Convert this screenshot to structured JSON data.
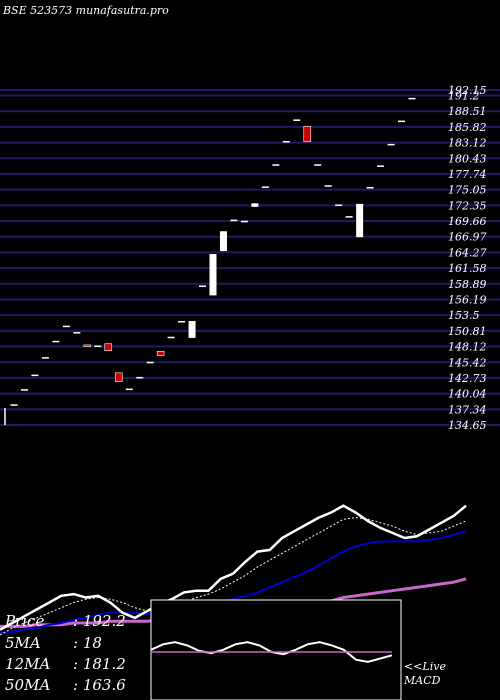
{
  "header": {
    "title": "BSE 523573 munafasutra.pro"
  },
  "chart_data": [
    {
      "type": "candlestick",
      "title": "BSE 523573 munafasutra.pro",
      "ylim": [
        134.65,
        192.15
      ],
      "y_ticks": [
        134.65,
        137.34,
        140.04,
        142.73,
        145.42,
        148.12,
        150.81,
        153.5,
        156.19,
        158.89,
        161.58,
        164.27,
        166.97,
        169.66,
        172.35,
        175.05,
        177.74,
        180.43,
        183.12,
        185.82,
        188.51,
        191.2,
        192.15
      ],
      "y_tick_labels": [
        "134.65",
        "137.34",
        "140.04",
        "142.73",
        "145.42",
        "148.12",
        "150.81",
        "153.5",
        "156.19",
        "158.89",
        "161.58",
        "164.27",
        "166.97",
        "169.66",
        "172.35",
        "175.05",
        "177.74",
        "180.43",
        "183.12",
        "185.82",
        "188.51",
        "191.2",
        "192.15"
      ],
      "colors": {
        "up": "#ffffff",
        "down": "#cc0000",
        "grid": "#1c1c66",
        "background": "#000000"
      },
      "candles": [
        {
          "open": 138.2,
          "close": 138.2,
          "high": 138.2,
          "low": 138.2
        },
        {
          "open": 140.8,
          "close": 140.8,
          "high": 140.8,
          "low": 140.8
        },
        {
          "open": 143.3,
          "close": 143.3,
          "high": 143.3,
          "low": 143.3
        },
        {
          "open": 146.3,
          "close": 146.3,
          "high": 146.3,
          "low": 146.3
        },
        {
          "open": 149.1,
          "close": 149.1,
          "high": 149.1,
          "low": 149.1
        },
        {
          "open": 151.7,
          "close": 151.7,
          "high": 151.7,
          "low": 151.7
        },
        {
          "open": 150.6,
          "close": 150.6,
          "high": 150.6,
          "low": 150.6
        },
        {
          "open": 148.4,
          "close": 148.1,
          "high": 148.4,
          "low": 148.1
        },
        {
          "open": 148.3,
          "close": 148.3,
          "high": 148.3,
          "low": 148.3
        },
        {
          "open": 148.6,
          "close": 147.4,
          "high": 148.6,
          "low": 147.4
        },
        {
          "open": 143.6,
          "close": 142.1,
          "high": 143.6,
          "low": 142.1
        },
        {
          "open": 140.9,
          "close": 140.9,
          "high": 140.9,
          "low": 140.9
        },
        {
          "open": 142.9,
          "close": 142.9,
          "high": 142.9,
          "low": 142.9
        },
        {
          "open": 145.5,
          "close": 145.5,
          "high": 145.5,
          "low": 145.5
        },
        {
          "open": 147.3,
          "close": 146.6,
          "high": 147.3,
          "low": 146.6
        },
        {
          "open": 149.8,
          "close": 149.8,
          "high": 149.8,
          "low": 149.8
        },
        {
          "open": 152.5,
          "close": 152.5,
          "high": 152.5,
          "low": 152.5
        },
        {
          "open": 149.6,
          "close": 152.5,
          "high": 152.5,
          "low": 149.6
        },
        {
          "open": 158.6,
          "close": 158.6,
          "high": 158.6,
          "low": 158.6
        },
        {
          "open": 156.9,
          "close": 164.0,
          "high": 164.0,
          "low": 156.9
        },
        {
          "open": 164.5,
          "close": 167.9,
          "high": 167.9,
          "low": 164.5
        },
        {
          "open": 169.9,
          "close": 169.9,
          "high": 169.9,
          "low": 169.9
        },
        {
          "open": 169.7,
          "close": 169.7,
          "high": 169.7,
          "low": 169.7
        },
        {
          "open": 172.1,
          "close": 172.7,
          "high": 172.7,
          "low": 172.1
        },
        {
          "open": 175.6,
          "close": 175.6,
          "high": 175.6,
          "low": 175.6
        },
        {
          "open": 179.4,
          "close": 179.4,
          "high": 179.4,
          "low": 179.4
        },
        {
          "open": 183.4,
          "close": 183.4,
          "high": 183.4,
          "low": 183.4
        },
        {
          "open": 187.1,
          "close": 187.1,
          "high": 187.1,
          "low": 187.1
        },
        {
          "open": 185.9,
          "close": 183.3,
          "high": 185.9,
          "low": 183.3
        },
        {
          "open": 179.4,
          "close": 179.4,
          "high": 179.4,
          "low": 179.4
        },
        {
          "open": 175.8,
          "close": 175.8,
          "high": 175.8,
          "low": 175.8
        },
        {
          "open": 172.5,
          "close": 172.5,
          "high": 172.5,
          "low": 172.5
        },
        {
          "open": 170.5,
          "close": 170.5,
          "high": 170.5,
          "low": 170.5
        },
        {
          "open": 166.9,
          "close": 172.6,
          "high": 172.6,
          "low": 166.9
        },
        {
          "open": 175.5,
          "close": 175.5,
          "high": 175.5,
          "low": 175.5
        },
        {
          "open": 179.2,
          "close": 179.2,
          "high": 179.2,
          "low": 179.2
        },
        {
          "open": 182.9,
          "close": 182.9,
          "high": 182.9,
          "low": 182.9
        },
        {
          "open": 186.9,
          "close": 186.9,
          "high": 186.9,
          "low": 186.9
        },
        {
          "open": 190.8,
          "close": 190.8,
          "high": 190.8,
          "low": 190.8
        }
      ]
    },
    {
      "type": "line",
      "colors": {
        "price": "#ffffff",
        "ma5": "#ffffff",
        "ma12": "#0000cc",
        "ma50": "#cc66cc"
      },
      "ylim": [
        0,
        100
      ],
      "series": [
        {
          "key": "price",
          "values": [
            6,
            10,
            14,
            18,
            22,
            26,
            27,
            25,
            26,
            22,
            16,
            13,
            17,
            21,
            24,
            28,
            29,
            29,
            36,
            39,
            46,
            52,
            53,
            60,
            64,
            68,
            72,
            75,
            79,
            75,
            70,
            66,
            63,
            60,
            61,
            65,
            69,
            73,
            79
          ]
        },
        {
          "key": "ma5",
          "values": [
            3,
            7,
            10,
            13,
            16,
            19,
            22,
            24,
            25,
            24,
            22,
            19,
            17,
            17,
            19,
            22,
            25,
            27,
            30,
            34,
            38,
            43,
            47,
            51,
            55,
            59,
            63,
            67,
            71,
            72,
            71,
            69,
            67,
            64,
            62,
            63,
            64,
            67,
            70
          ]
        },
        {
          "key": "ma12",
          "values": [
            4,
            5,
            6,
            7,
            9,
            10,
            12,
            13,
            15,
            16,
            16,
            16,
            15,
            16,
            17,
            18,
            19,
            20,
            22,
            24,
            26,
            28,
            31,
            34,
            37,
            40,
            44,
            48,
            52,
            55,
            57,
            58,
            58,
            58,
            58,
            59,
            60,
            62,
            64
          ]
        },
        {
          "key": "ma50",
          "values": [
            8,
            8,
            8,
            9,
            9,
            9,
            10,
            10,
            10,
            11,
            11,
            11,
            11,
            12,
            12,
            12,
            13,
            13,
            14,
            15,
            16,
            17,
            18,
            19,
            20,
            21,
            22,
            23,
            25,
            26,
            27,
            28,
            29,
            30,
            31,
            32,
            33,
            34,
            36
          ]
        }
      ]
    },
    {
      "type": "line",
      "colors": {
        "macd": "#ffffff",
        "signal": "#cc66cc"
      },
      "ylim": [
        -1,
        1
      ],
      "series": [
        {
          "key": "macd",
          "values": [
            0.1,
            0.35,
            0.45,
            0.3,
            0.05,
            -0.05,
            0.1,
            0.35,
            0.45,
            0.3,
            0.0,
            -0.1,
            0.1,
            0.35,
            0.45,
            0.3,
            0.1,
            -0.35,
            -0.45,
            -0.3,
            -0.15
          ]
        },
        {
          "key": "signal",
          "values": [
            0,
            0,
            0,
            0,
            0,
            0,
            0,
            0,
            0,
            0,
            0,
            0,
            0,
            0,
            0,
            0,
            0,
            0,
            0,
            0,
            0
          ]
        }
      ]
    }
  ],
  "stats": [
    {
      "label": "Price",
      "value": ": 192.2"
    },
    {
      "label": "5MA",
      "value": ": 18"
    },
    {
      "label": "12MA",
      "value": ": 181.2"
    },
    {
      "label": "50MA",
      "value": ": 163.6"
    }
  ],
  "macd_label": {
    "line1": "<<Live",
    "line2": "MACD"
  }
}
